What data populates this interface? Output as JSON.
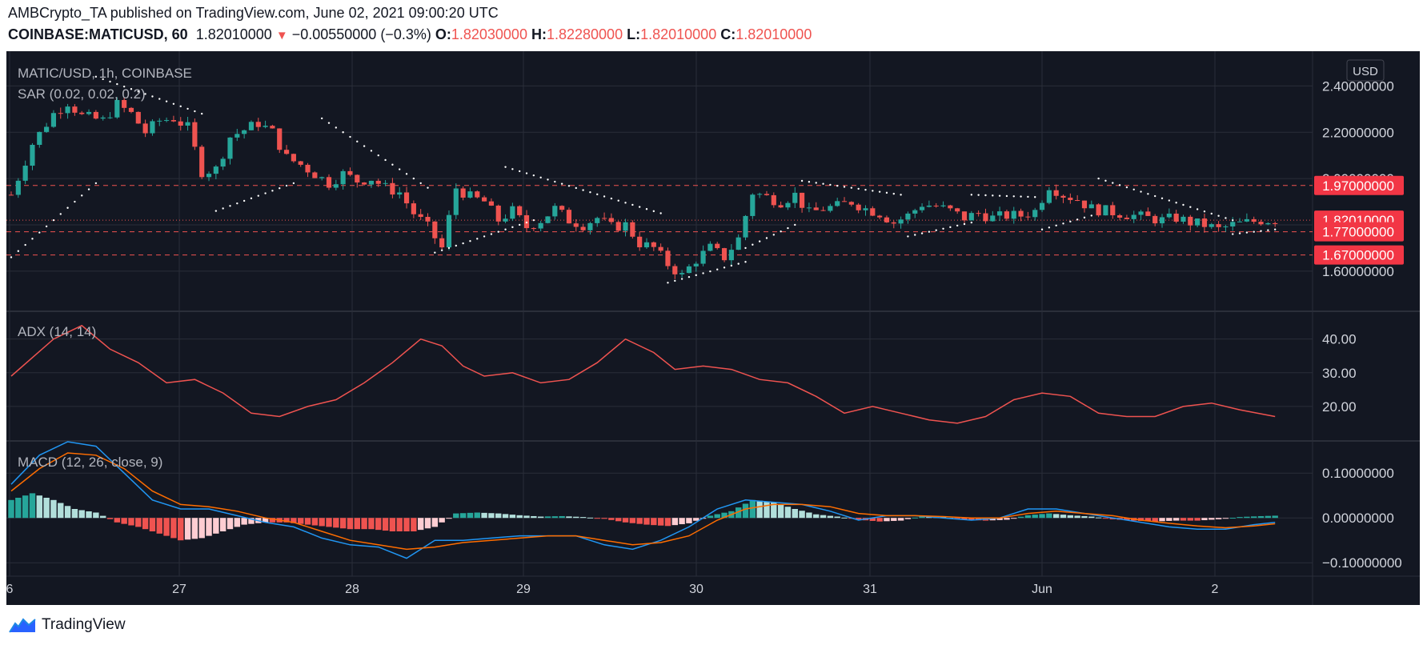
{
  "header": {
    "line1": "AMBCrypto_TA published on TradingView.com, June 02, 2021 09:00:20 UTC",
    "symbol": "COINBASE:MATICUSD, 60",
    "last": "1.82010000",
    "change": "−0.00550000 (−0.3%)",
    "o_label": "O:",
    "o_value": "1.82030000",
    "h_label": "H:",
    "h_value": "1.82280000",
    "l_label": "L:",
    "l_value": "1.82010000",
    "c_label": "C:",
    "c_value": "1.82010000"
  },
  "panes": {
    "main_title": "MATIC/USD, 1h, COINBASE",
    "sar_title": "SAR (0.02, 0.02, 0.2)",
    "adx_title": "ADX (14, 14)",
    "macd_title": "MACD (12, 26, close, 9)"
  },
  "currency_label": "USD",
  "footer": {
    "brand": "TradingView"
  },
  "colors": {
    "background": "#131722",
    "grid": "#2a2e39",
    "up": "#26a69a",
    "down": "#ef5350",
    "adx": "#ef5350",
    "macd": "#2196f3",
    "signal": "#ff6d00",
    "hist_up": "#26a69a",
    "hist_up_fade": "#b2dfdb",
    "hist_down": "#ef5350",
    "hist_down_fade": "#ffcdd2",
    "sar": "#ffffff",
    "axis_text": "#d1d4dc"
  },
  "chart_data": [
    {
      "type": "candlestick",
      "title": "MATIC/USD, 1h, COINBASE",
      "ylim": [
        1.43,
        2.55
      ],
      "y_ticks": [
        "2.40000000",
        "2.20000000",
        "2.00000000",
        "1.80000000",
        "1.60000000"
      ],
      "x_ticks": [
        "6",
        "27",
        "28",
        "29",
        "30",
        "31",
        "Jun",
        "2"
      ],
      "support_resistance_lines": [
        1.97,
        1.77,
        1.67
      ],
      "price_labels": [
        {
          "value": 1.97,
          "label": "1.97000000",
          "color": "#f23645"
        },
        {
          "value": 1.8201,
          "label": "1.82010000",
          "color": "#f23645"
        },
        {
          "value": 1.77,
          "label": "1.77000000",
          "color": "#f23645"
        },
        {
          "value": 1.67,
          "label": "1.67000000",
          "color": "#f23645"
        }
      ],
      "close_path": [
        [
          0,
          1.93
        ],
        [
          3,
          2.15
        ],
        [
          6,
          2.28
        ],
        [
          8,
          2.33
        ],
        [
          10,
          2.27
        ],
        [
          13,
          2.25
        ],
        [
          15,
          2.32
        ],
        [
          17,
          2.28
        ],
        [
          19,
          2.2
        ],
        [
          21,
          2.25
        ],
        [
          23,
          2.26
        ],
        [
          25,
          2.22
        ],
        [
          27,
          2.03
        ],
        [
          29,
          2.04
        ],
        [
          31,
          2.18
        ],
        [
          33,
          2.21
        ],
        [
          35,
          2.24
        ],
        [
          37,
          2.2
        ],
        [
          39,
          2.09
        ],
        [
          41,
          2.06
        ],
        [
          43,
          2.02
        ],
        [
          45,
          1.98
        ],
        [
          47,
          2.02
        ],
        [
          49,
          1.99
        ],
        [
          51,
          2.0
        ],
        [
          53,
          1.96
        ],
        [
          55,
          1.94
        ],
        [
          57,
          1.85
        ],
        [
          59,
          1.79
        ],
        [
          61,
          1.7
        ],
        [
          63,
          1.96
        ],
        [
          65,
          1.92
        ],
        [
          67,
          1.9
        ],
        [
          69,
          1.82
        ],
        [
          71,
          1.86
        ],
        [
          73,
          1.79
        ],
        [
          75,
          1.82
        ],
        [
          77,
          1.87
        ],
        [
          79,
          1.82
        ],
        [
          81,
          1.8
        ],
        [
          83,
          1.83
        ],
        [
          85,
          1.79
        ],
        [
          87,
          1.8
        ],
        [
          89,
          1.72
        ],
        [
          91,
          1.7
        ],
        [
          93,
          1.63
        ],
        [
          95,
          1.58
        ],
        [
          97,
          1.65
        ],
        [
          99,
          1.7
        ],
        [
          101,
          1.66
        ],
        [
          103,
          1.74
        ],
        [
          105,
          1.94
        ],
        [
          107,
          1.92
        ],
        [
          109,
          1.9
        ],
        [
          111,
          1.93
        ],
        [
          113,
          1.85
        ],
        [
          115,
          1.87
        ],
        [
          117,
          1.88
        ],
        [
          119,
          1.9
        ],
        [
          121,
          1.87
        ],
        [
          123,
          1.85
        ],
        [
          125,
          1.81
        ],
        [
          127,
          1.84
        ],
        [
          129,
          1.89
        ],
        [
          131,
          1.88
        ],
        [
          133,
          1.86
        ],
        [
          135,
          1.83
        ],
        [
          137,
          1.85
        ],
        [
          139,
          1.83
        ],
        [
          141,
          1.84
        ],
        [
          143,
          1.84
        ],
        [
          145,
          1.86
        ],
        [
          147,
          1.97
        ],
        [
          149,
          1.93
        ],
        [
          151,
          1.91
        ],
        [
          153,
          1.87
        ],
        [
          155,
          1.86
        ],
        [
          157,
          1.85
        ],
        [
          159,
          1.84
        ],
        [
          161,
          1.83
        ],
        [
          163,
          1.82
        ],
        [
          165,
          1.83
        ],
        [
          167,
          1.81
        ],
        [
          169,
          1.8
        ],
        [
          171,
          1.78
        ],
        [
          173,
          1.8
        ],
        [
          175,
          1.81
        ],
        [
          177,
          1.82
        ],
        [
          179,
          1.82
        ]
      ],
      "sar_segments": [
        {
          "x": [
            0,
            12
          ],
          "y": [
            1.66,
            1.98
          ]
        },
        {
          "x": [
            12,
            27
          ],
          "y": [
            2.44,
            2.28
          ]
        },
        {
          "x": [
            29,
            40
          ],
          "y": [
            1.86,
            1.98
          ]
        },
        {
          "x": [
            44,
            59
          ],
          "y": [
            2.26,
            1.96
          ]
        },
        {
          "x": [
            60,
            74
          ],
          "y": [
            1.68,
            1.82
          ]
        },
        {
          "x": [
            70,
            92
          ],
          "y": [
            2.05,
            1.85
          ]
        },
        {
          "x": [
            93,
            104
          ],
          "y": [
            1.55,
            1.64
          ]
        },
        {
          "x": [
            104,
            111
          ],
          "y": [
            1.7,
            1.8
          ]
        },
        {
          "x": [
            112,
            126
          ],
          "y": [
            1.99,
            1.93
          ]
        },
        {
          "x": [
            127,
            136
          ],
          "y": [
            1.75,
            1.81
          ]
        },
        {
          "x": [
            136,
            145
          ],
          "y": [
            1.93,
            1.92
          ]
        },
        {
          "x": [
            146,
            153
          ],
          "y": [
            1.78,
            1.84
          ]
        },
        {
          "x": [
            154,
            173
          ],
          "y": [
            2.0,
            1.82
          ]
        },
        {
          "x": [
            173,
            179
          ],
          "y": [
            1.76,
            1.78
          ]
        }
      ]
    },
    {
      "type": "line",
      "title": "ADX (14, 14)",
      "ylim": [
        10,
        48
      ],
      "y_ticks": [
        "40.00",
        "30.00",
        "20.00"
      ],
      "x": [
        0,
        6,
        10,
        14,
        18,
        22,
        26,
        30,
        34,
        38,
        42,
        46,
        50,
        54,
        58,
        61,
        64,
        67,
        71,
        75,
        79,
        83,
        87,
        91,
        94,
        98,
        102,
        106,
        110,
        114,
        118,
        122,
        126,
        130,
        134,
        138,
        142,
        146,
        150,
        154,
        158,
        162,
        166,
        170,
        174,
        179
      ],
      "y": [
        29,
        40,
        44,
        37,
        33,
        27,
        28,
        24,
        18,
        17,
        20,
        22,
        27,
        33,
        40,
        38,
        32,
        29,
        30,
        27,
        28,
        33,
        40,
        36,
        31,
        32,
        31,
        28,
        27,
        23,
        18,
        20,
        18,
        16,
        15,
        17,
        22,
        24,
        23,
        18,
        17,
        17,
        20,
        21,
        19,
        17
      ]
    },
    {
      "type": "line",
      "title": "MACD (12, 26, close, 9)",
      "ylim": [
        -0.13,
        0.17
      ],
      "y_ticks": [
        "0.10000000",
        "0.00000000",
        "−0.10000000"
      ],
      "series": [
        {
          "x": [
            0,
            4,
            8,
            12,
            16,
            20,
            24,
            28,
            32,
            36,
            40,
            44,
            48,
            52,
            56,
            60,
            64,
            68,
            72,
            76,
            80,
            84,
            88,
            92,
            96,
            100,
            104,
            108,
            112,
            116,
            120,
            124,
            128,
            132,
            136,
            140,
            144,
            148,
            152,
            156,
            160,
            164,
            168,
            172,
            176,
            179
          ],
          "y": [
            0.075,
            0.14,
            0.17,
            0.16,
            0.1,
            0.04,
            0.02,
            0.02,
            0.005,
            -0.01,
            -0.02,
            -0.045,
            -0.06,
            -0.065,
            -0.09,
            -0.05,
            -0.05,
            -0.045,
            -0.04,
            -0.04,
            -0.04,
            -0.06,
            -0.07,
            -0.05,
            -0.02,
            0.02,
            0.04,
            0.035,
            0.03,
            0.015,
            -0.005,
            0.005,
            0.005,
            0.0,
            -0.005,
            0.0,
            0.02,
            0.02,
            0.01,
            0.0,
            -0.01,
            -0.02,
            -0.025,
            -0.025,
            -0.015,
            -0.01
          ]
        },
        {
          "x": [
            0,
            4,
            8,
            12,
            16,
            20,
            24,
            28,
            32,
            36,
            40,
            44,
            48,
            52,
            56,
            60,
            64,
            68,
            72,
            76,
            80,
            84,
            88,
            92,
            96,
            100,
            104,
            108,
            112,
            116,
            120,
            124,
            128,
            132,
            136,
            140,
            144,
            148,
            152,
            156,
            160,
            164,
            168,
            172,
            176,
            179
          ],
          "y": [
            0.06,
            0.11,
            0.145,
            0.14,
            0.11,
            0.06,
            0.03,
            0.025,
            0.015,
            0.0,
            -0.01,
            -0.03,
            -0.05,
            -0.06,
            -0.07,
            -0.065,
            -0.055,
            -0.05,
            -0.045,
            -0.04,
            -0.04,
            -0.05,
            -0.06,
            -0.055,
            -0.04,
            -0.005,
            0.02,
            0.03,
            0.03,
            0.025,
            0.01,
            0.005,
            0.005,
            0.003,
            0.0,
            0.0,
            0.01,
            0.015,
            0.01,
            0.005,
            -0.005,
            -0.012,
            -0.018,
            -0.022,
            -0.018,
            -0.013
          ]
        }
      ],
      "histogram": {
        "x": [
          0,
          3,
          6,
          9,
          12,
          15,
          18,
          21,
          24,
          27,
          30,
          33,
          36,
          39,
          42,
          45,
          48,
          51,
          54,
          57,
          60,
          63,
          66,
          69,
          72,
          75,
          78,
          81,
          84,
          87,
          90,
          93,
          96,
          99,
          102,
          105,
          108,
          111,
          114,
          117,
          120,
          123,
          126,
          129,
          132,
          135,
          138,
          141,
          144,
          147,
          150,
          153,
          156,
          159,
          162,
          165,
          168,
          171,
          174,
          177,
          179
        ],
        "y": [
          0.04,
          0.055,
          0.04,
          0.02,
          0.012,
          -0.01,
          -0.02,
          -0.035,
          -0.05,
          -0.045,
          -0.03,
          -0.015,
          -0.01,
          -0.01,
          -0.015,
          -0.02,
          -0.025,
          -0.025,
          -0.03,
          -0.03,
          -0.02,
          0.01,
          0.012,
          0.01,
          0.006,
          0.003,
          0.004,
          0.002,
          -0.002,
          -0.01,
          -0.015,
          -0.018,
          -0.012,
          0.005,
          0.015,
          0.04,
          0.035,
          0.02,
          0.008,
          0.003,
          -0.004,
          -0.008,
          -0.006,
          0.004,
          0.002,
          -0.004,
          -0.006,
          -0.004,
          0.006,
          0.01,
          0.006,
          0.003,
          -0.003,
          -0.006,
          -0.008,
          -0.006,
          -0.006,
          -0.003,
          0.002,
          0.004,
          0.005
        ]
      }
    }
  ]
}
